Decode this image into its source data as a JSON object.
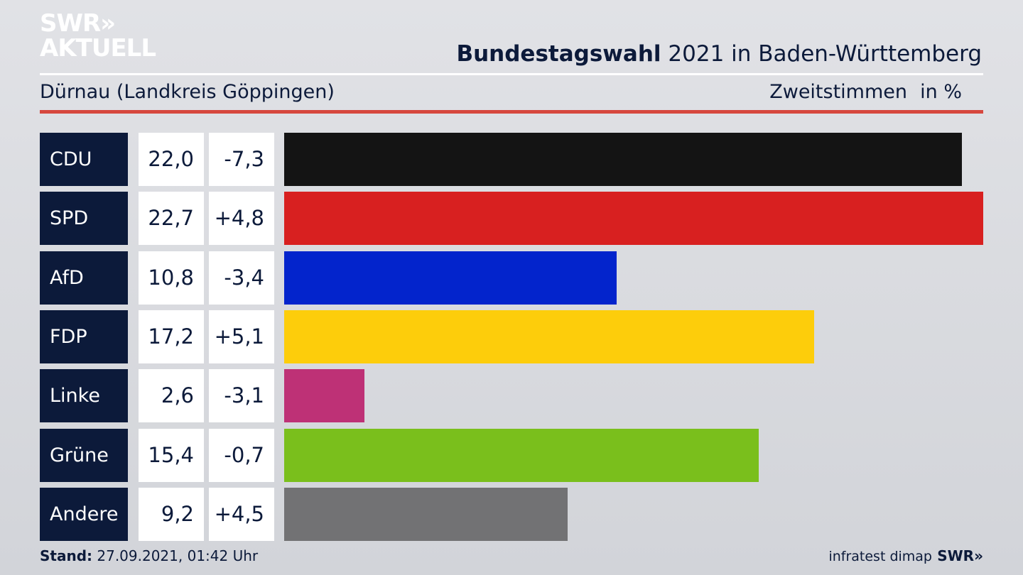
{
  "logo": {
    "line1": "SWR»",
    "line2": "AKTUELL"
  },
  "header": {
    "title_bold": "Bundestagswahl",
    "title_rest": " 2021 in Baden-Württemberg",
    "subtitle": "Dürnau (Landkreis Göppingen)",
    "metric": "Zweitstimmen",
    "unit": "in %"
  },
  "chart_data": {
    "type": "bar",
    "orientation": "horizontal",
    "categories": [
      "CDU",
      "SPD",
      "AfD",
      "FDP",
      "Linke",
      "Grüne",
      "Andere"
    ],
    "values": [
      22.0,
      22.7,
      10.8,
      17.2,
      2.6,
      15.4,
      9.2
    ],
    "value_labels": [
      "22,0",
      "22,7",
      "10,8",
      "17,2",
      "2,6",
      "15,4",
      "9,2"
    ],
    "changes": [
      -7.3,
      4.8,
      -3.4,
      5.1,
      -3.1,
      -0.7,
      4.5
    ],
    "change_labels": [
      "-7,3",
      "+4,8",
      "-3,4",
      "+5,1",
      "-3,1",
      "-0,7",
      "+4,5"
    ],
    "colors": [
      "#141414",
      "#d82020",
      "#0324cc",
      "#fdcd0b",
      "#be3176",
      "#7abf1c",
      "#727274"
    ],
    "xlim": [
      0,
      22.7
    ],
    "grid": false,
    "legend": "none"
  },
  "footer": {
    "stand_label": "Stand:",
    "stand_value": " 27.09.2021, 01:42 Uhr",
    "source": "infratest dimap",
    "brand": "SWR»"
  }
}
